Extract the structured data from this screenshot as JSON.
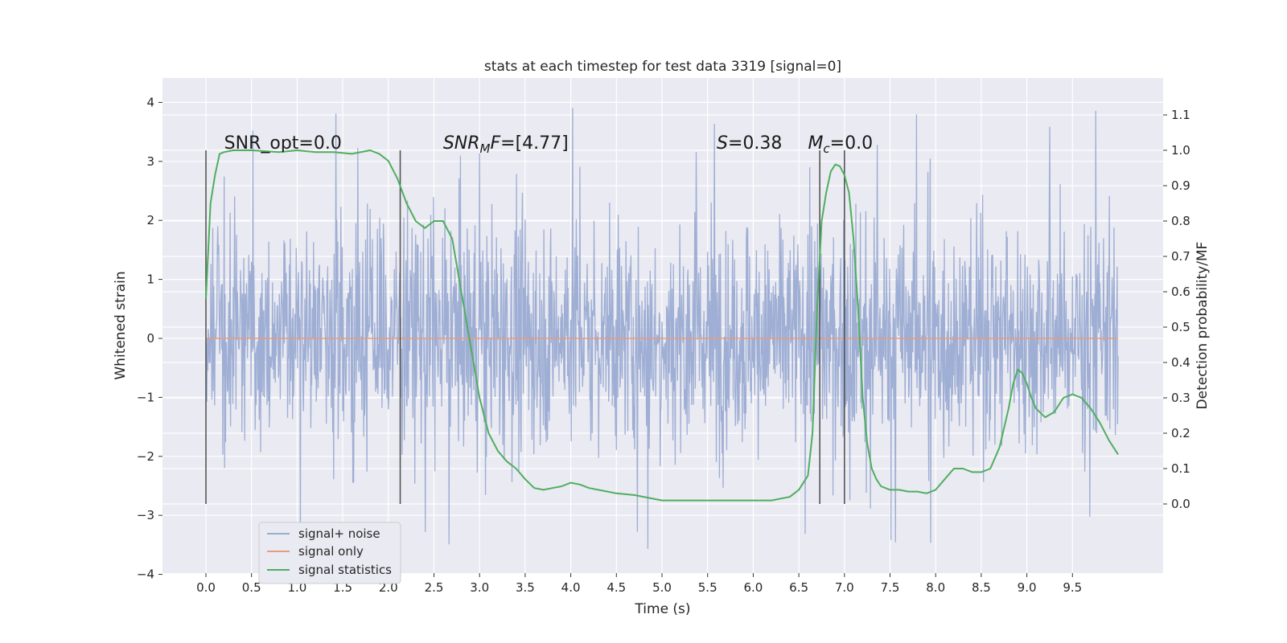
{
  "chart_data": {
    "type": "line",
    "title": "stats at each timestep for test data 3319 [signal=0]",
    "xlabel": "Time (s)",
    "ylabel_left": "Whitened strain",
    "ylabel_right": "Detection probability/MF",
    "xlim": [
      -0.5,
      10.5
    ],
    "ylim_left": [
      -4.0,
      4.4
    ],
    "ylim_right": [
      -0.2,
      1.19
    ],
    "x_ticks": [
      "0.0",
      "0.5",
      "1.0",
      "1.5",
      "2.0",
      "2.5",
      "3.0",
      "3.5",
      "4.0",
      "4.5",
      "5.0",
      "5.5",
      "6.0",
      "6.5",
      "7.0",
      "7.5",
      "8.0",
      "8.5",
      "9.0",
      "9.5"
    ],
    "y_ticks_left": [
      "4",
      "3",
      "2",
      "1",
      "0",
      "−1",
      "−2",
      "−3",
      "−4"
    ],
    "y_ticks_right": [
      "1.1",
      "1.0",
      "0.9",
      "0.8",
      "0.7",
      "0.6",
      "0.5",
      "0.4",
      "0.3",
      "0.2",
      "0.1",
      "0.0"
    ],
    "grid": true,
    "legend_position": "lower-left",
    "series": [
      {
        "name": "signal+ noise",
        "axis": "left",
        "color": "#9aabd2",
        "description_range": {
          "x": [
            0.0,
            10.0
          ],
          "typical_band": [
            -1.8,
            2.2
          ],
          "peak_max": 4.05,
          "peak_min": -3.6
        }
      },
      {
        "name": "signal only",
        "axis": "left",
        "color": "#e59c82",
        "x": [
          0.0,
          10.0
        ],
        "y": [
          0.0,
          0.0
        ]
      },
      {
        "name": "signal statistics",
        "axis": "right",
        "color": "#4fae5f",
        "x": [
          0.0,
          0.05,
          0.1,
          0.15,
          0.2,
          0.3,
          0.5,
          0.8,
          1.0,
          1.2,
          1.4,
          1.6,
          1.8,
          1.9,
          2.0,
          2.1,
          2.2,
          2.3,
          2.4,
          2.5,
          2.6,
          2.7,
          2.8,
          2.9,
          3.0,
          3.1,
          3.2,
          3.3,
          3.4,
          3.5,
          3.6,
          3.7,
          3.8,
          3.9,
          4.0,
          4.1,
          4.2,
          4.3,
          4.5,
          4.7,
          5.0,
          5.5,
          6.0,
          6.2,
          6.4,
          6.5,
          6.55,
          6.6,
          6.65,
          6.7,
          6.75,
          6.8,
          6.85,
          6.9,
          6.95,
          7.0,
          7.05,
          7.1,
          7.15,
          7.2,
          7.25,
          7.3,
          7.35,
          7.4,
          7.5,
          7.6,
          7.7,
          7.8,
          7.9,
          8.0,
          8.1,
          8.2,
          8.3,
          8.4,
          8.5,
          8.6,
          8.7,
          8.8,
          8.85,
          8.9,
          8.95,
          9.0,
          9.05,
          9.1,
          9.2,
          9.3,
          9.4,
          9.5,
          9.6,
          9.7,
          9.8,
          9.9,
          10.0
        ],
        "y": [
          0.58,
          0.85,
          0.93,
          0.99,
          0.995,
          1.0,
          1.0,
          0.995,
          1.0,
          0.995,
          0.995,
          0.99,
          1.0,
          0.99,
          0.97,
          0.92,
          0.85,
          0.8,
          0.78,
          0.8,
          0.8,
          0.75,
          0.6,
          0.45,
          0.3,
          0.2,
          0.15,
          0.12,
          0.1,
          0.07,
          0.045,
          0.04,
          0.045,
          0.05,
          0.06,
          0.055,
          0.045,
          0.04,
          0.03,
          0.025,
          0.01,
          0.01,
          0.01,
          0.01,
          0.02,
          0.04,
          0.06,
          0.08,
          0.2,
          0.55,
          0.8,
          0.88,
          0.94,
          0.96,
          0.955,
          0.93,
          0.88,
          0.75,
          0.55,
          0.3,
          0.17,
          0.1,
          0.07,
          0.05,
          0.04,
          0.04,
          0.035,
          0.035,
          0.03,
          0.04,
          0.07,
          0.1,
          0.1,
          0.09,
          0.09,
          0.1,
          0.16,
          0.27,
          0.34,
          0.38,
          0.37,
          0.34,
          0.3,
          0.27,
          0.245,
          0.26,
          0.3,
          0.31,
          0.3,
          0.27,
          0.23,
          0.18,
          0.14
        ]
      }
    ],
    "vertical_lines": [
      0.0,
      2.13,
      6.73,
      7.0
    ],
    "annotations": [
      {
        "text": "SNR_opt=0.0",
        "x": 0.2
      },
      {
        "text": "=[4.77]",
        "x": 2.6,
        "math_prefix": "SNR",
        "math_sub": "M",
        "math_mid": "F"
      },
      {
        "text": "=0.38",
        "x": 5.6,
        "math_prefix": "S"
      },
      {
        "text": "=0.0",
        "x": 6.6,
        "math_prefix": "M",
        "math_sub": "c"
      }
    ]
  },
  "legend": {
    "items": [
      {
        "label": "signal+ noise",
        "color": "#9aabd2"
      },
      {
        "label": "signal only",
        "color": "#e59c82"
      },
      {
        "label": "signal statistics",
        "color": "#4fae5f"
      }
    ]
  }
}
